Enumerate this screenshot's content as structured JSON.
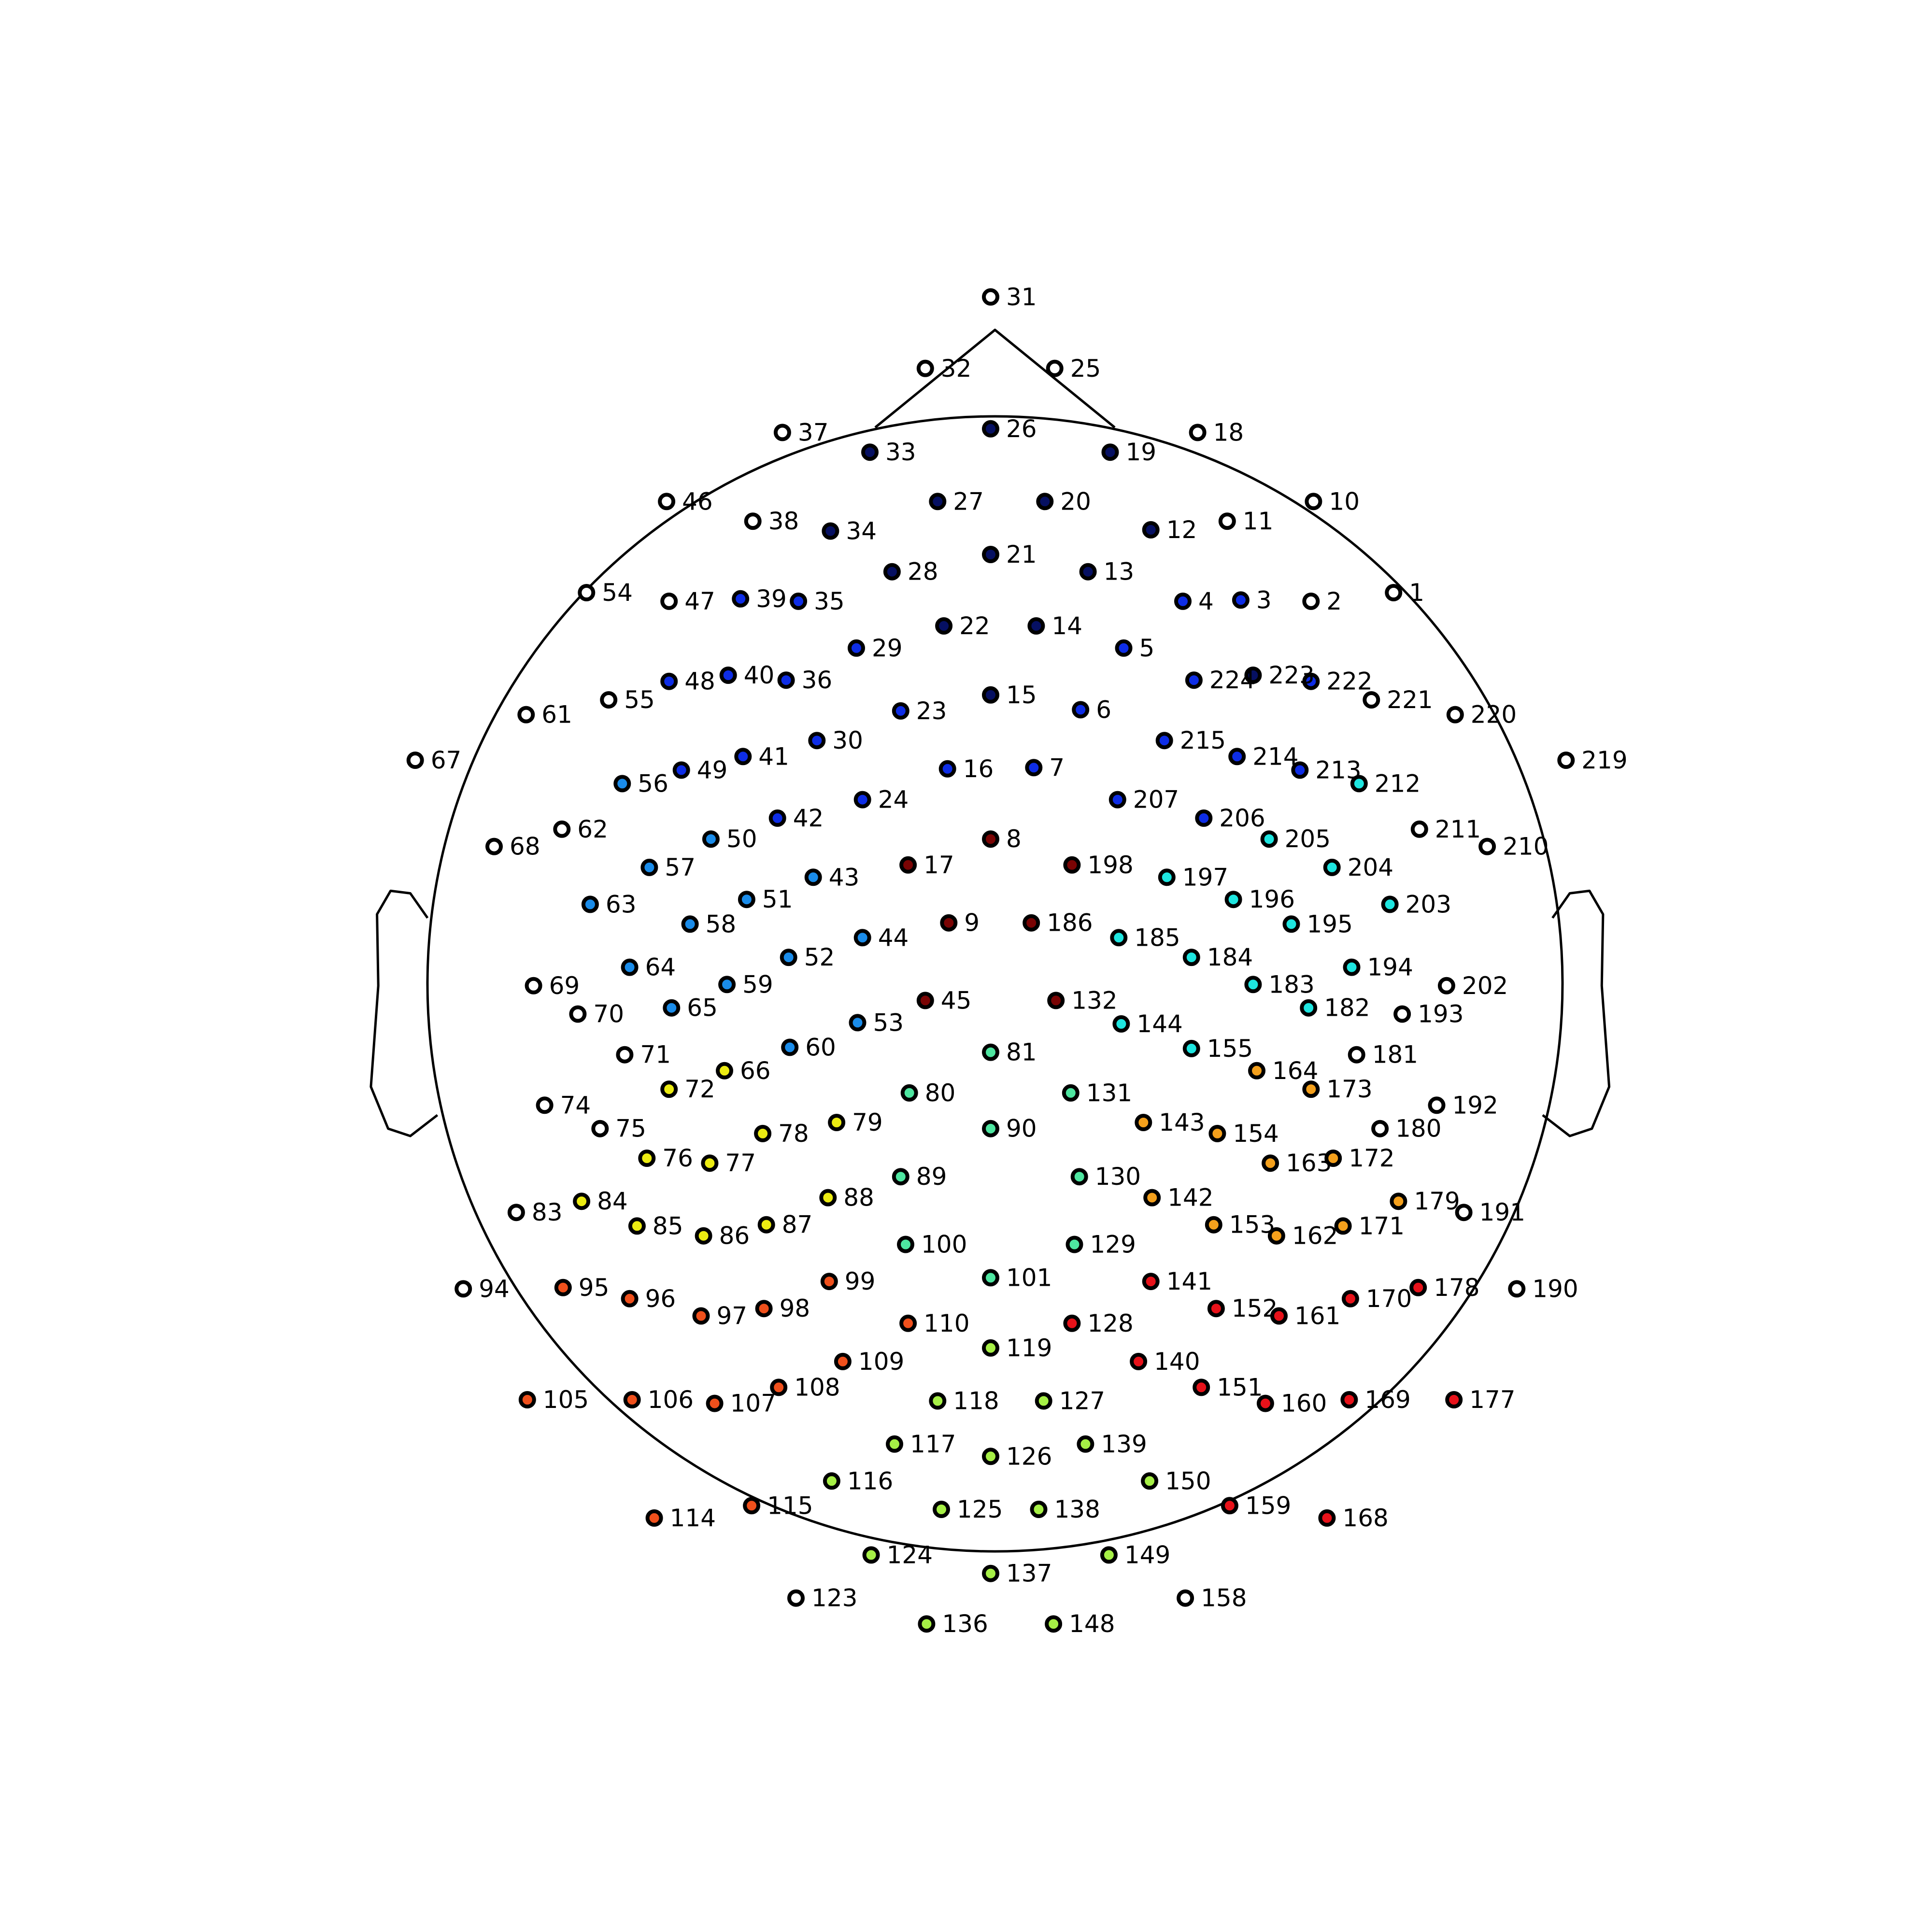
{
  "colors": {
    "none": "#ffffff",
    "darknavy": "#061062",
    "blue": "#0e2de6",
    "azure": "#1a8cea",
    "cyan": "#1ee6e0",
    "mint": "#4ee6a0",
    "lime": "#a6f046",
    "yellow": "#ecec12",
    "orange": "#f4a01c",
    "redorange": "#f0501c",
    "red": "#e8121a",
    "darkred": "#7a0404"
  },
  "electrodes": [
    {
      "label": "1",
      "c": "none"
    },
    {
      "label": "2",
      "c": "none"
    },
    {
      "label": "3",
      "c": "blue"
    },
    {
      "label": "4",
      "c": "blue"
    },
    {
      "label": "5",
      "c": "blue"
    },
    {
      "label": "6",
      "c": "blue"
    },
    {
      "label": "7",
      "c": "blue"
    },
    {
      "label": "8",
      "c": "darkred"
    },
    {
      "label": "9",
      "c": "darkred"
    },
    {
      "label": "10",
      "c": "none"
    },
    {
      "label": "11",
      "c": "none"
    },
    {
      "label": "12",
      "c": "darknavy"
    },
    {
      "label": "13",
      "c": "darknavy"
    },
    {
      "label": "14",
      "c": "darknavy"
    },
    {
      "label": "15",
      "c": "darknavy"
    },
    {
      "label": "16",
      "c": "blue"
    },
    {
      "label": "17",
      "c": "darkred"
    },
    {
      "label": "18",
      "c": "none"
    },
    {
      "label": "19",
      "c": "darknavy"
    },
    {
      "label": "20",
      "c": "darknavy"
    },
    {
      "label": "21",
      "c": "darknavy"
    },
    {
      "label": "22",
      "c": "darknavy"
    },
    {
      "label": "23",
      "c": "blue"
    },
    {
      "label": "24",
      "c": "blue"
    },
    {
      "label": "25",
      "c": "none"
    },
    {
      "label": "26",
      "c": "darknavy"
    },
    {
      "label": "27",
      "c": "darknavy"
    },
    {
      "label": "28",
      "c": "darknavy"
    },
    {
      "label": "29",
      "c": "blue"
    },
    {
      "label": "30",
      "c": "blue"
    },
    {
      "label": "31",
      "c": "none"
    },
    {
      "label": "32",
      "c": "none"
    },
    {
      "label": "33",
      "c": "darknavy"
    },
    {
      "label": "34",
      "c": "darknavy"
    },
    {
      "label": "35",
      "c": "blue"
    },
    {
      "label": "36",
      "c": "blue"
    },
    {
      "label": "37",
      "c": "none"
    },
    {
      "label": "38",
      "c": "none"
    },
    {
      "label": "39",
      "c": "blue"
    },
    {
      "label": "40",
      "c": "blue"
    },
    {
      "label": "41",
      "c": "blue"
    },
    {
      "label": "42",
      "c": "blue"
    },
    {
      "label": "43",
      "c": "azure"
    },
    {
      "label": "44",
      "c": "azure"
    },
    {
      "label": "45",
      "c": "darkred"
    },
    {
      "label": "46",
      "c": "none"
    },
    {
      "label": "47",
      "c": "none"
    },
    {
      "label": "48",
      "c": "blue"
    },
    {
      "label": "49",
      "c": "blue"
    },
    {
      "label": "50",
      "c": "azure"
    },
    {
      "label": "51",
      "c": "azure"
    },
    {
      "label": "52",
      "c": "azure"
    },
    {
      "label": "53",
      "c": "azure"
    },
    {
      "label": "54",
      "c": "none"
    },
    {
      "label": "55",
      "c": "none"
    },
    {
      "label": "56",
      "c": "azure"
    },
    {
      "label": "57",
      "c": "azure"
    },
    {
      "label": "58",
      "c": "azure"
    },
    {
      "label": "59",
      "c": "azure"
    },
    {
      "label": "60",
      "c": "azure"
    },
    {
      "label": "61",
      "c": "none"
    },
    {
      "label": "62",
      "c": "none"
    },
    {
      "label": "63",
      "c": "azure"
    },
    {
      "label": "64",
      "c": "azure"
    },
    {
      "label": "65",
      "c": "azure"
    },
    {
      "label": "66",
      "c": "yellow"
    },
    {
      "label": "67",
      "c": "none"
    },
    {
      "label": "68",
      "c": "none"
    },
    {
      "label": "69",
      "c": "none"
    },
    {
      "label": "70",
      "c": "none"
    },
    {
      "label": "71",
      "c": "none"
    },
    {
      "label": "72",
      "c": "yellow"
    },
    {
      "label": "74",
      "c": "none"
    },
    {
      "label": "75",
      "c": "none"
    },
    {
      "label": "76",
      "c": "yellow"
    },
    {
      "label": "77",
      "c": "yellow"
    },
    {
      "label": "78",
      "c": "yellow"
    },
    {
      "label": "79",
      "c": "yellow"
    },
    {
      "label": "80",
      "c": "mint"
    },
    {
      "label": "81",
      "c": "mint"
    },
    {
      "label": "83",
      "c": "none"
    },
    {
      "label": "84",
      "c": "yellow"
    },
    {
      "label": "85",
      "c": "yellow"
    },
    {
      "label": "86",
      "c": "yellow"
    },
    {
      "label": "87",
      "c": "yellow"
    },
    {
      "label": "88",
      "c": "yellow"
    },
    {
      "label": "89",
      "c": "mint"
    },
    {
      "label": "90",
      "c": "mint"
    },
    {
      "label": "94",
      "c": "none"
    },
    {
      "label": "95",
      "c": "redorange"
    },
    {
      "label": "96",
      "c": "redorange"
    },
    {
      "label": "97",
      "c": "redorange"
    },
    {
      "label": "98",
      "c": "redorange"
    },
    {
      "label": "99",
      "c": "redorange"
    },
    {
      "label": "100",
      "c": "mint"
    },
    {
      "label": "101",
      "c": "mint"
    },
    {
      "label": "105",
      "c": "redorange"
    },
    {
      "label": "106",
      "c": "redorange"
    },
    {
      "label": "107",
      "c": "redorange"
    },
    {
      "label": "108",
      "c": "redorange"
    },
    {
      "label": "109",
      "c": "redorange"
    },
    {
      "label": "110",
      "c": "redorange"
    },
    {
      "label": "114",
      "c": "redorange"
    },
    {
      "label": "115",
      "c": "redorange"
    },
    {
      "label": "116",
      "c": "lime"
    },
    {
      "label": "117",
      "c": "lime"
    },
    {
      "label": "118",
      "c": "lime"
    },
    {
      "label": "119",
      "c": "lime"
    },
    {
      "label": "123",
      "c": "none"
    },
    {
      "label": "124",
      "c": "lime"
    },
    {
      "label": "125",
      "c": "lime"
    },
    {
      "label": "126",
      "c": "lime"
    },
    {
      "label": "127",
      "c": "lime"
    },
    {
      "label": "128",
      "c": "red"
    },
    {
      "label": "129",
      "c": "mint"
    },
    {
      "label": "130",
      "c": "mint"
    },
    {
      "label": "131",
      "c": "mint"
    },
    {
      "label": "132",
      "c": "darkred"
    },
    {
      "label": "136",
      "c": "lime"
    },
    {
      "label": "137",
      "c": "lime"
    },
    {
      "label": "138",
      "c": "lime"
    },
    {
      "label": "139",
      "c": "lime"
    },
    {
      "label": "140",
      "c": "red"
    },
    {
      "label": "141",
      "c": "red"
    },
    {
      "label": "142",
      "c": "orange"
    },
    {
      "label": "143",
      "c": "orange"
    },
    {
      "label": "144",
      "c": "cyan"
    },
    {
      "label": "148",
      "c": "lime"
    },
    {
      "label": "149",
      "c": "lime"
    },
    {
      "label": "150",
      "c": "lime"
    },
    {
      "label": "151",
      "c": "red"
    },
    {
      "label": "152",
      "c": "red"
    },
    {
      "label": "153",
      "c": "orange"
    },
    {
      "label": "154",
      "c": "orange"
    },
    {
      "label": "155",
      "c": "cyan"
    },
    {
      "label": "158",
      "c": "none"
    },
    {
      "label": "159",
      "c": "red"
    },
    {
      "label": "160",
      "c": "red"
    },
    {
      "label": "161",
      "c": "red"
    },
    {
      "label": "162",
      "c": "orange"
    },
    {
      "label": "163",
      "c": "orange"
    },
    {
      "label": "164",
      "c": "orange"
    },
    {
      "label": "168",
      "c": "red"
    },
    {
      "label": "169",
      "c": "red"
    },
    {
      "label": "170",
      "c": "red"
    },
    {
      "label": "171",
      "c": "orange"
    },
    {
      "label": "172",
      "c": "orange"
    },
    {
      "label": "173",
      "c": "orange"
    },
    {
      "label": "177",
      "c": "red"
    },
    {
      "label": "178",
      "c": "red"
    },
    {
      "label": "179",
      "c": "orange"
    },
    {
      "label": "180",
      "c": "none"
    },
    {
      "label": "181",
      "c": "none"
    },
    {
      "label": "182",
      "c": "cyan"
    },
    {
      "label": "183",
      "c": "cyan"
    },
    {
      "label": "184",
      "c": "cyan"
    },
    {
      "label": "185",
      "c": "cyan"
    },
    {
      "label": "186",
      "c": "darkred"
    },
    {
      "label": "190",
      "c": "none"
    },
    {
      "label": "191",
      "c": "none"
    },
    {
      "label": "192",
      "c": "none"
    },
    {
      "label": "193",
      "c": "none"
    },
    {
      "label": "194",
      "c": "cyan"
    },
    {
      "label": "195",
      "c": "cyan"
    },
    {
      "label": "196",
      "c": "cyan"
    },
    {
      "label": "197",
      "c": "cyan"
    },
    {
      "label": "198",
      "c": "darkred"
    },
    {
      "label": "202",
      "c": "none"
    },
    {
      "label": "203",
      "c": "cyan"
    },
    {
      "label": "204",
      "c": "cyan"
    },
    {
      "label": "205",
      "c": "cyan"
    },
    {
      "label": "206",
      "c": "blue"
    },
    {
      "label": "207",
      "c": "blue"
    },
    {
      "label": "210",
      "c": "none"
    },
    {
      "label": "211",
      "c": "none"
    },
    {
      "label": "212",
      "c": "cyan"
    },
    {
      "label": "213",
      "c": "blue"
    },
    {
      "label": "214",
      "c": "blue"
    },
    {
      "label": "215",
      "c": "blue"
    },
    {
      "label": "219",
      "c": "none"
    },
    {
      "label": "220",
      "c": "none"
    },
    {
      "label": "221",
      "c": "none"
    },
    {
      "label": "222",
      "c": "blue"
    },
    {
      "label": "223",
      "c": "darknavy"
    },
    {
      "label": "224",
      "c": "blue"
    }
  ]
}
